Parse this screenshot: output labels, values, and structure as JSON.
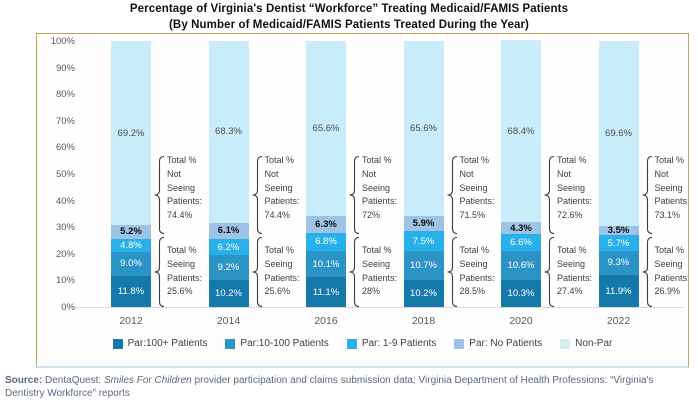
{
  "title": {
    "line1": "Percentage of Virginia's Dentist “Workforce” Treating Medicaid/FAMIS Patients",
    "line2": "(By Number of Medicaid/FAMIS Patients Treated During the Year)"
  },
  "y_axis": {
    "ticks": [
      "100%",
      "90%",
      "80%",
      "70%",
      "60%",
      "50%",
      "40%",
      "30%",
      "20%",
      "10%",
      "0%"
    ]
  },
  "legend": [
    {
      "label": "Par:100+ Patients",
      "color": "#1579a9"
    },
    {
      "label": "Par:10-100 Patients",
      "color": "#2b94c6"
    },
    {
      "label": "Par: 1-9 Patients",
      "color": "#27b0e9"
    },
    {
      "label": "Par: No Patients",
      "color": "#9dc4e6"
    },
    {
      "label": "Non-Par",
      "color": "#d5eeed"
    }
  ],
  "source": {
    "label": "Source:",
    "pre": " DentaQuest: ",
    "italic": "Smiles For Children",
    "post": " provider participation and claims submission data; Virginia Department of Health Professions: “Virginia's Dentistry Workforce” reports"
  },
  "chart_data": {
    "type": "bar",
    "stacked": true,
    "title": "Percentage of Virginia's Dentist “Workforce” Treating Medicaid/FAMIS Patients (By Number of Medicaid/FAMIS Patients Treated During the Year)",
    "categories": [
      "2012",
      "2014",
      "2016",
      "2018",
      "2020",
      "2022"
    ],
    "ylim": [
      0,
      100
    ],
    "grid": false,
    "legend_position": "bottom",
    "series": [
      {
        "key": "par-100plus",
        "name": "Par:100+ Patients",
        "color": "#1579a9",
        "label_color": "#ffffff",
        "label_bold": false,
        "values": [
          11.8,
          10.2,
          11.1,
          10.2,
          10.3,
          11.9
        ],
        "labels": [
          "11.8%",
          "10.2%",
          "11.1%",
          "10.2%",
          "10.3%",
          "11.9%"
        ]
      },
      {
        "key": "par-10-100",
        "name": "Par:10-100 Patients",
        "color": "#2b94c6",
        "label_color": "#ffffff",
        "label_bold": false,
        "values": [
          9.0,
          9.2,
          10.1,
          10.7,
          10.6,
          9.3
        ],
        "labels": [
          "9.0%",
          "9.2%",
          "10.1%",
          "10.7%",
          "10.6%",
          "9.3%"
        ]
      },
      {
        "key": "par-1-9",
        "name": "Par: 1-9 Patients",
        "color": "#27b0e9",
        "label_color": "#ffffff",
        "label_bold": false,
        "values": [
          4.8,
          6.2,
          6.8,
          7.5,
          6.6,
          5.7
        ],
        "labels": [
          "4.8%",
          "6.2%",
          "6.8%",
          "7.5%",
          "6.6%",
          "5.7%"
        ]
      },
      {
        "key": "par-no-patients",
        "name": "Par: No Patients",
        "color": "#9dc4e6",
        "label_color": "#0d0d0d",
        "label_bold": true,
        "values": [
          5.2,
          6.1,
          6.3,
          5.9,
          4.3,
          3.5
        ],
        "labels": [
          "5.2%",
          "6.1%",
          "6.3%",
          "5.9%",
          "4.3%",
          "3.5%"
        ]
      },
      {
        "key": "non-par",
        "name": "Non-Par",
        "color": "#c8ecfa",
        "label_color": "#4d4d4d",
        "label_bold": false,
        "values": [
          69.2,
          68.3,
          65.6,
          65.6,
          68.4,
          69.6
        ],
        "labels": [
          "69.2%",
          "68.3%",
          "65.6%",
          "65.6%",
          "68.4%",
          "69.6%"
        ]
      }
    ],
    "annotations": [
      {
        "year": "2012",
        "not_seeing": [
          "Total %",
          "Not",
          "Seeing",
          "Patients:",
          "74.4%"
        ],
        "seeing": [
          "Total %",
          "Seeing",
          "Patients:",
          "25.6%"
        ]
      },
      {
        "year": "2014",
        "not_seeing": [
          "Total %",
          "Not",
          "Seeing",
          "Patients:",
          "74.4%"
        ],
        "seeing": [
          "Total %",
          "Seeing",
          "Patients:",
          "25.6%"
        ]
      },
      {
        "year": "2016",
        "not_seeing": [
          "Total %",
          "Not",
          "Seeing",
          "Patients:",
          "72%"
        ],
        "seeing": [
          "Total %",
          "Seeing",
          "Patients:",
          "28%"
        ]
      },
      {
        "year": "2018",
        "not_seeing": [
          "Total %",
          "Not",
          "Seeing",
          "Patients:",
          "71.5%"
        ],
        "seeing": [
          "Total %",
          "Seeing",
          "Patients:",
          "28.5%"
        ]
      },
      {
        "year": "2020",
        "not_seeing": [
          "Total %",
          "Not",
          "Seeing",
          "Patients:",
          "72.6%"
        ],
        "seeing": [
          "Total %",
          "Seeing",
          "Patients:",
          "27.4%"
        ]
      },
      {
        "year": "2022",
        "not_seeing": [
          "Total %",
          "Not",
          "Seeing",
          "Patients:",
          "73.1%"
        ],
        "seeing": [
          "Total %",
          "Seeing",
          "Patients:",
          "26.9%"
        ]
      }
    ]
  }
}
